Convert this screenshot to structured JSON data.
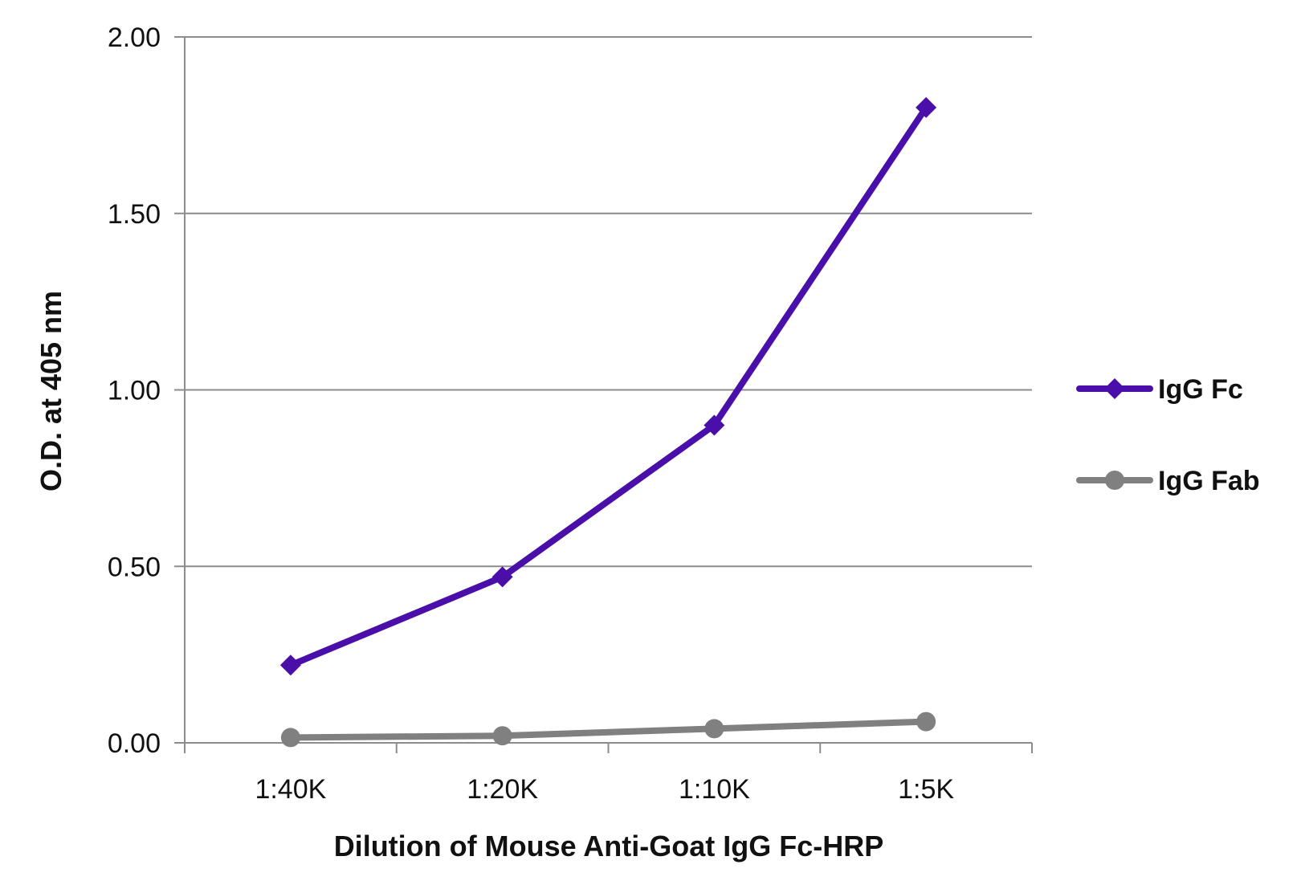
{
  "chart_data": {
    "type": "line",
    "categories": [
      "1:40K",
      "1:20K",
      "1:10K",
      "1:5K"
    ],
    "series": [
      {
        "name": "IgG Fc",
        "values": [
          0.22,
          0.47,
          0.9,
          1.8
        ],
        "color": "#4a0fa8",
        "marker": "diamond"
      },
      {
        "name": "IgG Fab",
        "values": [
          0.015,
          0.02,
          0.04,
          0.06
        ],
        "color": "#808080",
        "marker": "circle"
      }
    ],
    "xlabel": "Dilution of Mouse Anti-Goat IgG Fc-HRP",
    "ylabel": "O.D. at 405 nm",
    "ylim": [
      0,
      2
    ],
    "yticks": [
      "0.00",
      "0.50",
      "1.00",
      "1.50",
      "2.00"
    ],
    "grid": true,
    "legend_position": "right"
  }
}
